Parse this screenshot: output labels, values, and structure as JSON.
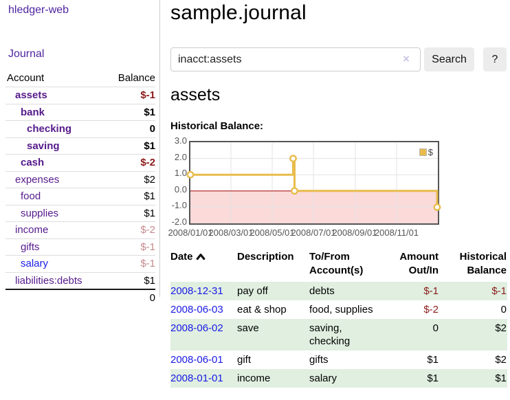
{
  "app": {
    "brand": "hledger-web",
    "nav_journal": "Journal"
  },
  "sidebar": {
    "header": {
      "account": "Account",
      "balance": "Balance"
    },
    "accounts": [
      {
        "name": "assets",
        "balance": "$-1"
      },
      {
        "name": "bank",
        "balance": "$1"
      },
      {
        "name": "checking",
        "balance": "0"
      },
      {
        "name": "saving",
        "balance": "$1"
      },
      {
        "name": "cash",
        "balance": "$-2"
      },
      {
        "name": "expenses",
        "balance": "$2"
      },
      {
        "name": "food",
        "balance": "$1"
      },
      {
        "name": "supplies",
        "balance": "$1"
      },
      {
        "name": "income",
        "balance": "$-2"
      },
      {
        "name": "gifts",
        "balance": "$-1"
      },
      {
        "name": "salary",
        "balance": "$-1"
      },
      {
        "name": "liabilities:debts",
        "balance": "$1"
      }
    ],
    "total": "0"
  },
  "header": {
    "title": "sample.journal"
  },
  "search": {
    "value": "inacct:assets",
    "clear_icon": "×",
    "button": "Search",
    "help_button": "?"
  },
  "account_page": {
    "heading": "assets",
    "chart_title": "Historical Balance:"
  },
  "chart_data": {
    "type": "line",
    "title": "Historical Balance:",
    "series": [
      {
        "name": "$",
        "color": "#e8bc4c",
        "step": true,
        "points": [
          {
            "x": "2008-01-01",
            "y": 1
          },
          {
            "x": "2008-06-01",
            "y": 2
          },
          {
            "x": "2008-06-03",
            "y": 0
          },
          {
            "x": "2008-12-31",
            "y": -1
          }
        ]
      }
    ],
    "ylim": [
      -2,
      3
    ],
    "x_range": [
      "2008-01-01",
      "2009-01-01"
    ],
    "yticks": [
      "3.0",
      "2.0",
      "1.0",
      "0.0",
      "-1.0",
      "-2.0"
    ],
    "ytick_values": [
      3,
      2,
      1,
      0,
      -1,
      -2
    ],
    "xticks": [
      "2008/01/01",
      "2008/03/01",
      "2008/05/01",
      "2008/07/01",
      "2008/09/01",
      "2008/11/01"
    ],
    "xtick_dates": [
      "2008-01-01",
      "2008-03-01",
      "2008-05-01",
      "2008-07-01",
      "2008-09-01",
      "2008-11-01"
    ],
    "grid_on": true,
    "grid_color": "#e3e3e3",
    "zero_line_color": "#aa1c1c",
    "negative_region_fill": "#fbdada",
    "legend": {
      "label": "$",
      "position": "top-right"
    }
  },
  "register": {
    "columns": {
      "date": "Date",
      "description": "Description",
      "tofrom_1": "To/From",
      "tofrom_2": "Account(s)",
      "amount_1": "Amount",
      "amount_2": "Out/In",
      "balance_1": "Historical",
      "balance_2": "Balance"
    },
    "sort_icon": "chevron-up",
    "rows": [
      {
        "date": "2008-12-31",
        "description": "pay off",
        "accounts": "debts",
        "amount": "$-1",
        "balance": "$-1"
      },
      {
        "date": "2008-06-03",
        "description": "eat & shop",
        "accounts": "food, supplies",
        "amount": "$-2",
        "balance": "0"
      },
      {
        "date": "2008-06-02",
        "description": "save",
        "accounts": "saving, checking",
        "amount": "0",
        "balance": "$2"
      },
      {
        "date": "2008-06-01",
        "description": "gift",
        "accounts": "gifts",
        "amount": "$1",
        "balance": "$2"
      },
      {
        "date": "2008-01-01",
        "description": "income",
        "accounts": "salary",
        "amount": "$1",
        "balance": "$1"
      }
    ]
  },
  "colors": {
    "purple_link": "#4e24a0",
    "account_link": "#551a8b",
    "blue_link": "#1a1ae6",
    "negative_strong": "#8b1a1a",
    "negative_faded": "#c5898e",
    "row_green": "#e0efe0",
    "chart_line": "#e8bc4c"
  }
}
